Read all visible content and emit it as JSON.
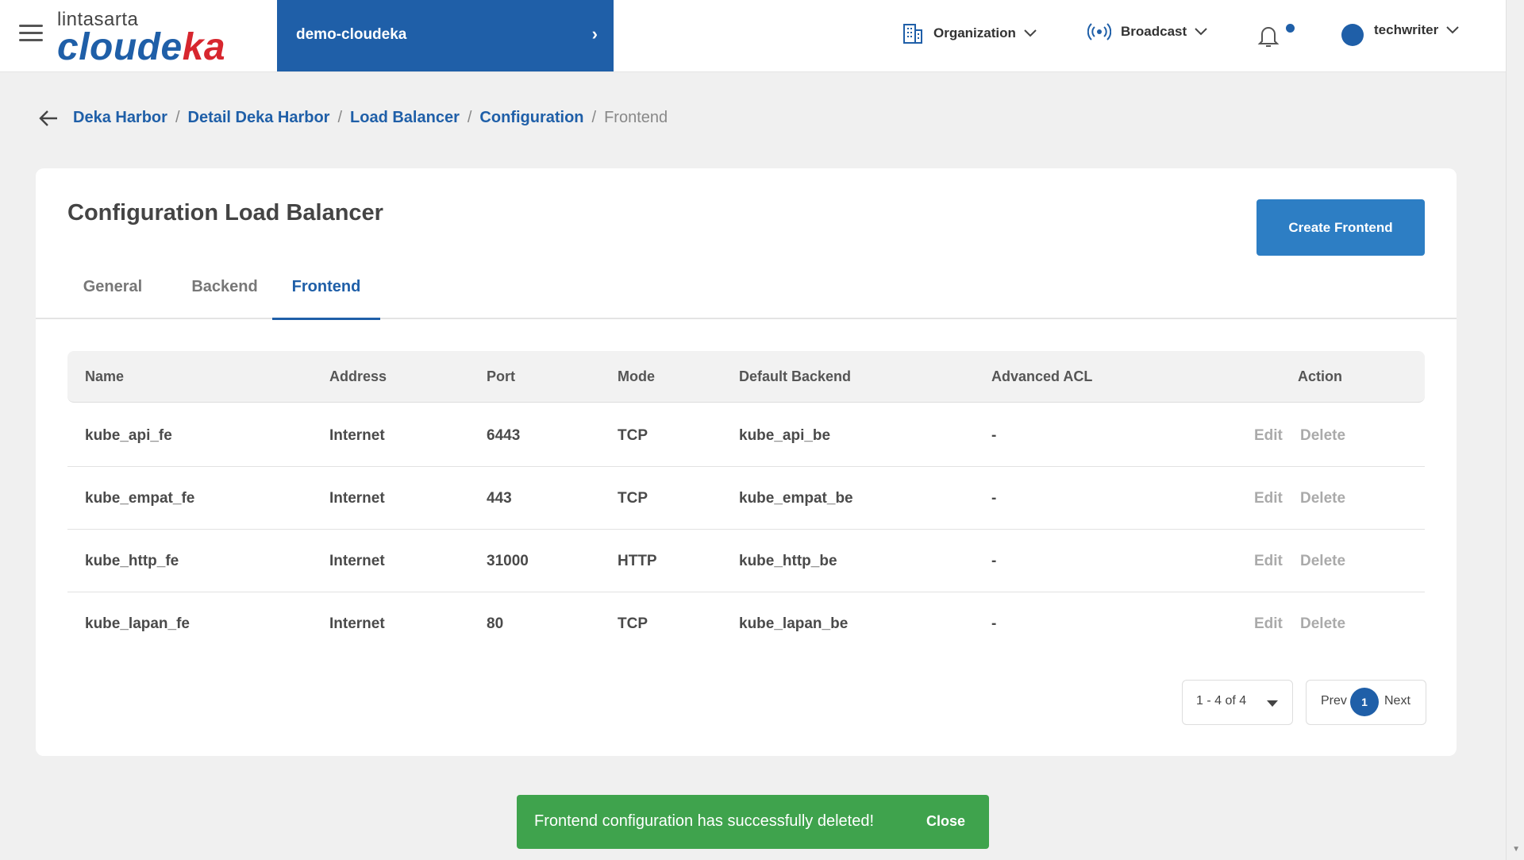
{
  "header": {
    "logo_top": "lintasarta",
    "logo_main_a": "cloude",
    "logo_main_b": "ka",
    "project": "demo-cloudeka",
    "organization_label": "Organization",
    "broadcast_label": "Broadcast",
    "user_label": "techwriter"
  },
  "breadcrumb": {
    "items": [
      "Deka Harbor",
      "Detail Deka Harbor",
      "Load Balancer",
      "Configuration"
    ],
    "current": "Frontend",
    "separator": "/"
  },
  "page": {
    "title": "Configuration Load Balancer",
    "create_button": "Create Frontend",
    "tabs": [
      "General",
      "Backend",
      "Frontend"
    ],
    "active_tab": "Frontend"
  },
  "table": {
    "columns": [
      "Name",
      "Address",
      "Port",
      "Mode",
      "Default Backend",
      "Advanced ACL",
      "Action"
    ],
    "rows": [
      {
        "name": "kube_api_fe",
        "address": "Internet",
        "port": "6443",
        "mode": "TCP",
        "backend": "kube_api_be",
        "acl": "-"
      },
      {
        "name": "kube_empat_fe",
        "address": "Internet",
        "port": "443",
        "mode": "TCP",
        "backend": "kube_empat_be",
        "acl": "-"
      },
      {
        "name": "kube_http_fe",
        "address": "Internet",
        "port": "31000",
        "mode": "HTTP",
        "backend": "kube_http_be",
        "acl": "-"
      },
      {
        "name": "kube_lapan_fe",
        "address": "Internet",
        "port": "80",
        "mode": "TCP",
        "backend": "kube_lapan_be",
        "acl": "-"
      }
    ],
    "edit_label": "Edit",
    "delete_label": "Delete"
  },
  "pagination": {
    "range": "1 - 4 of 4",
    "prev": "Prev",
    "current_page": "1",
    "next": "Next"
  },
  "toast": {
    "message": "Frontend configuration has successfully deleted!",
    "close": "Close",
    "color": "#3fa34d"
  },
  "colors": {
    "brand_blue": "#1f5fa8",
    "button_blue": "#2d7ec4",
    "logo_red": "#d7262e"
  }
}
